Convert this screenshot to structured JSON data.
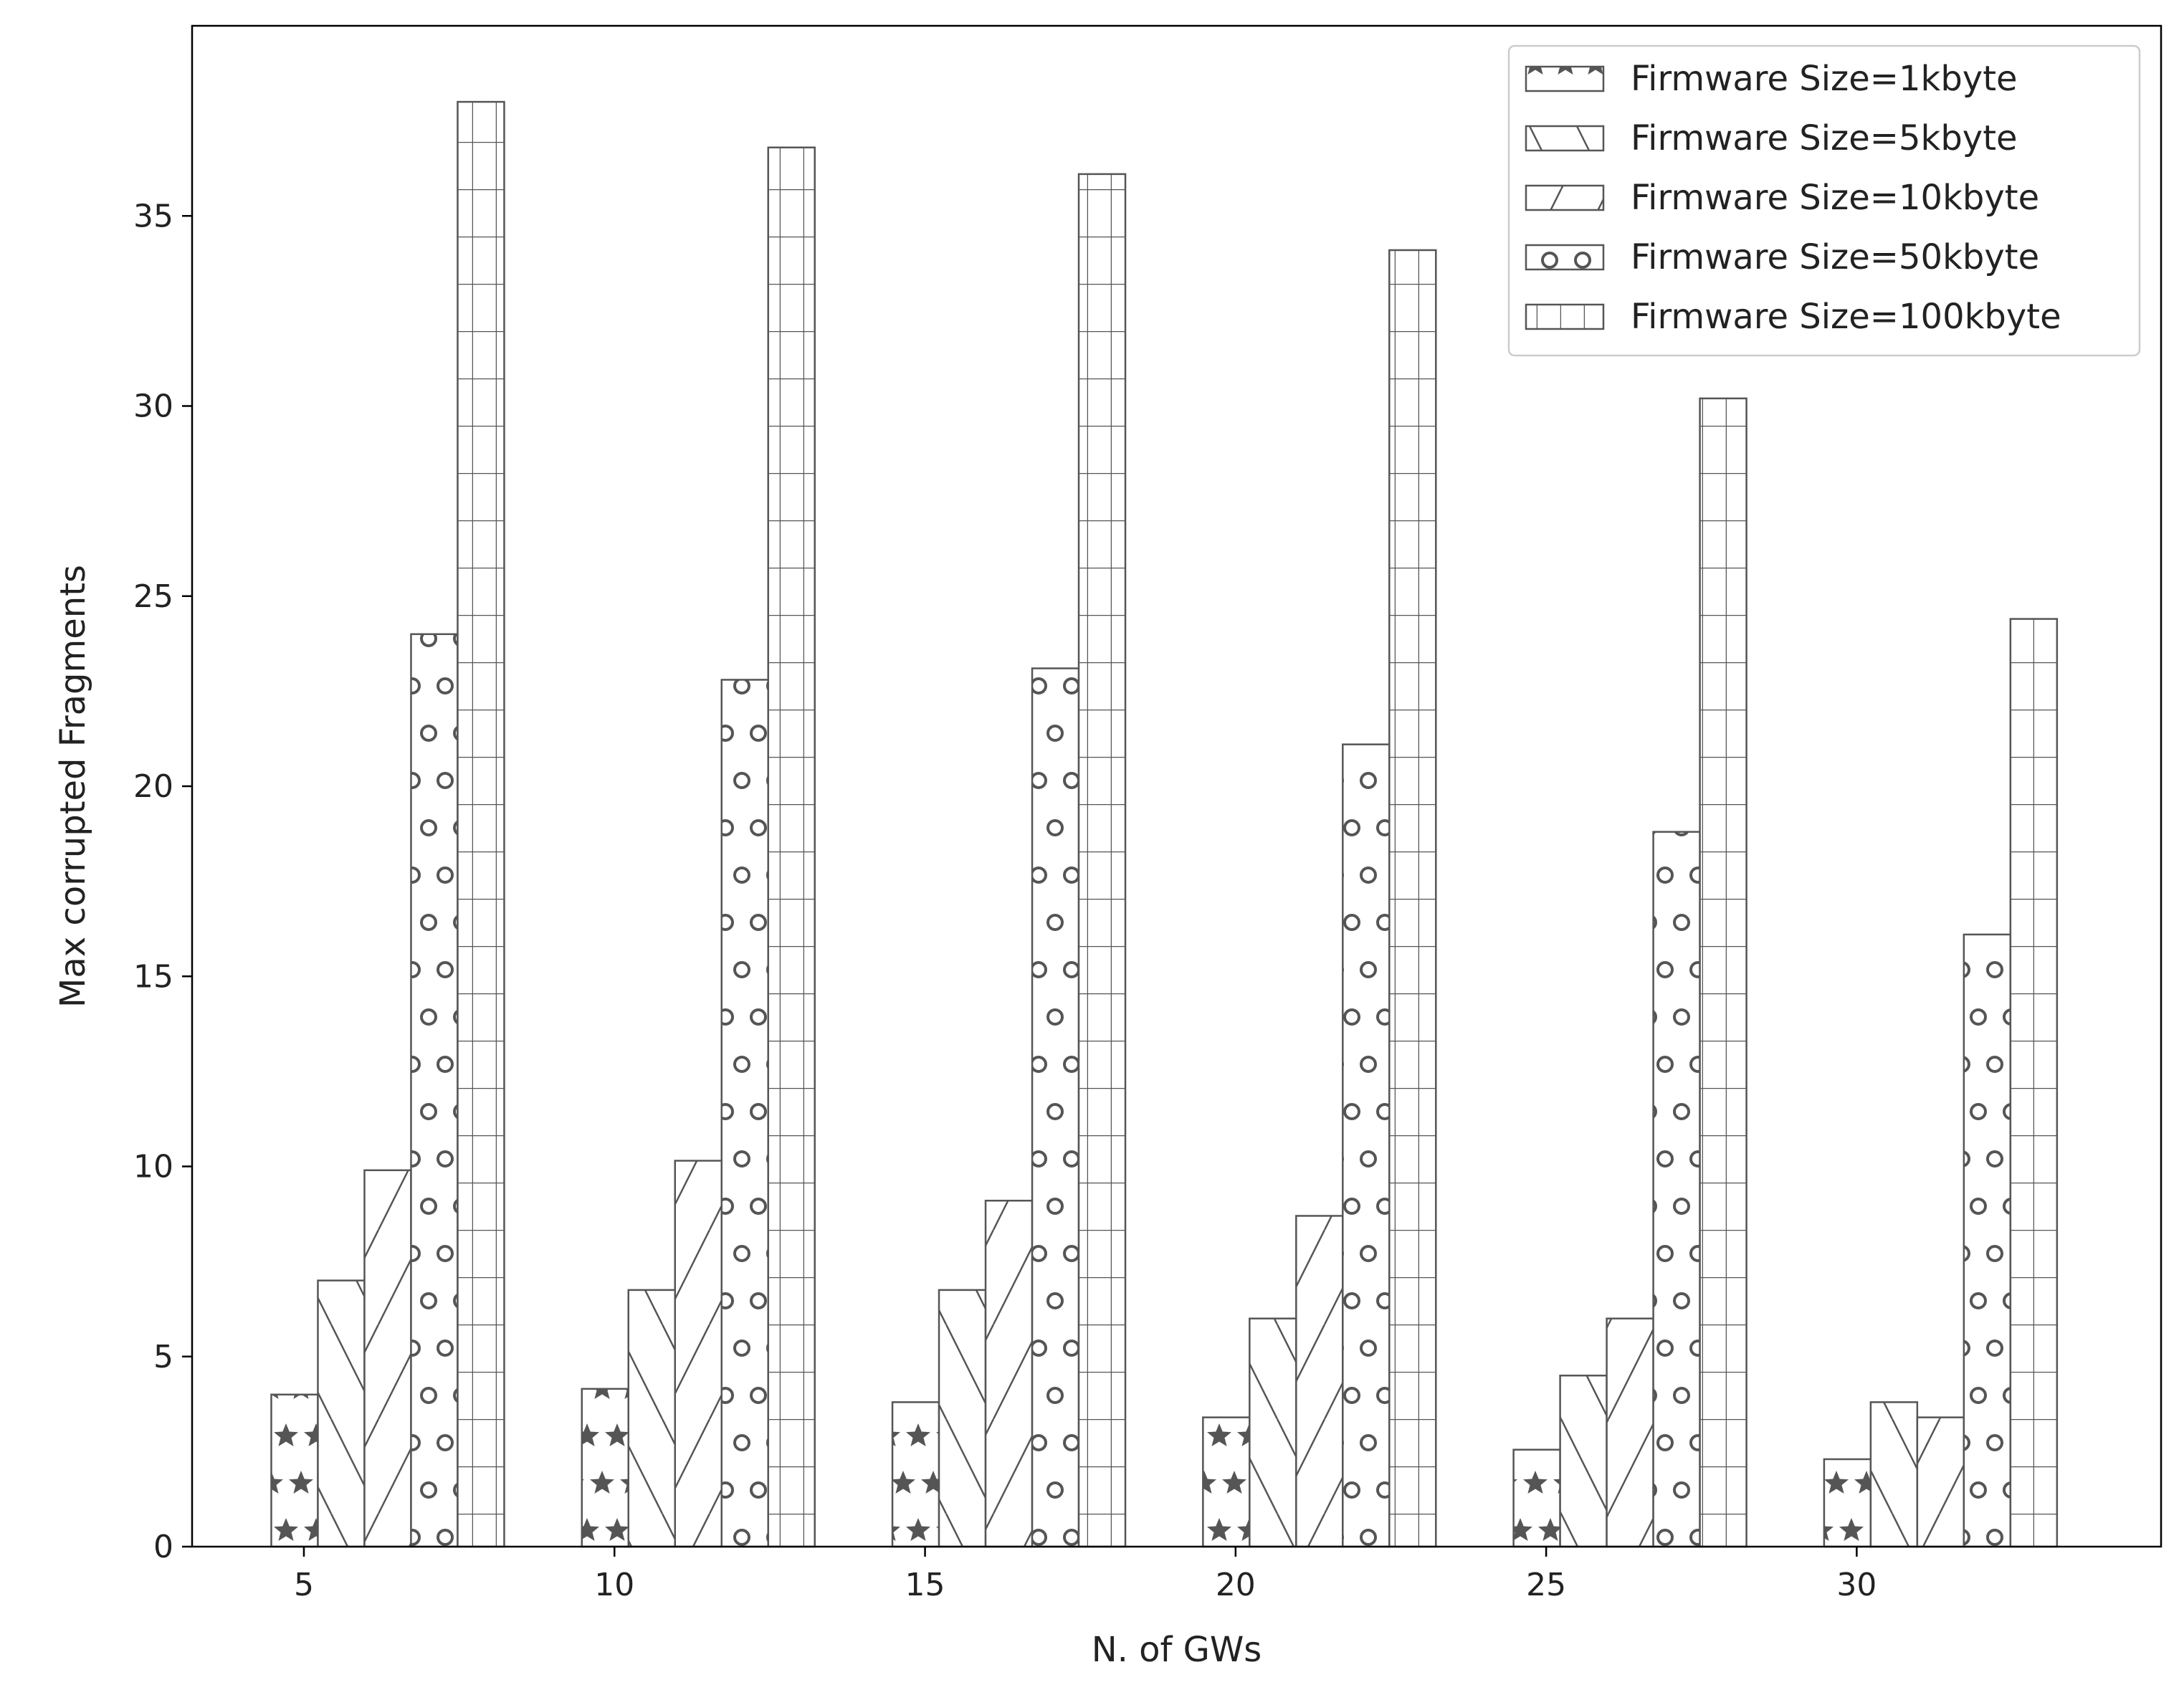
{
  "chart_data": {
    "type": "bar",
    "title": "",
    "xlabel": "N. of GWs",
    "ylabel": "Max corrupted Fragments",
    "categories": [
      "5",
      "10",
      "15",
      "20",
      "25",
      "30"
    ],
    "x_ticks": [
      "5",
      "10",
      "15",
      "20",
      "25",
      "30"
    ],
    "y_ticks": [
      "0",
      "5",
      "10",
      "15",
      "20",
      "25",
      "30",
      "35"
    ],
    "ylim": [
      0,
      40
    ],
    "legend_position": "top-right",
    "grid": false,
    "series": [
      {
        "name": "Firmware Size=1kbyte",
        "hatch": "stars",
        "values": [
          4.0,
          4.15,
          3.8,
          3.4,
          2.55,
          2.3
        ]
      },
      {
        "name": "Firmware Size=5kbyte",
        "hatch": "backslash",
        "values": [
          7.0,
          6.75,
          6.75,
          6.0,
          4.5,
          3.8
        ]
      },
      {
        "name": "Firmware Size=10kbyte",
        "hatch": "slash",
        "values": [
          9.9,
          10.15,
          9.1,
          8.7,
          6.0,
          3.4
        ]
      },
      {
        "name": "Firmware Size=50kbyte",
        "hatch": "circles",
        "values": [
          24.0,
          22.8,
          23.1,
          21.1,
          18.8,
          16.1
        ]
      },
      {
        "name": "Firmware Size=100kbyte",
        "hatch": "grid",
        "values": [
          38.0,
          36.8,
          36.1,
          34.1,
          30.2,
          24.4
        ]
      }
    ],
    "colors": {
      "edge": "#555555",
      "fill": "#ffffff",
      "hatch": "#555555",
      "axis": "#000000"
    }
  }
}
